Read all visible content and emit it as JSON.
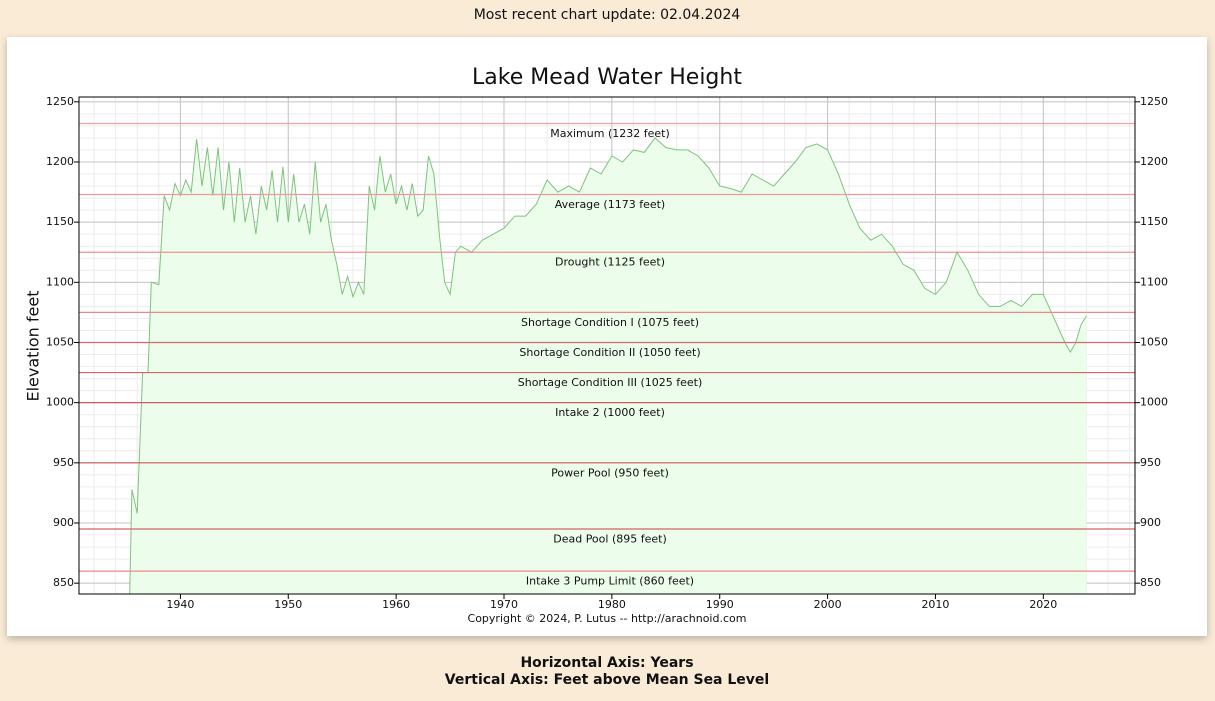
{
  "page": {
    "update_note": "Most recent chart update: 02.04.2024",
    "axis_notes": [
      "Horizontal Axis: Years",
      "Vertical Axis: Feet above Mean Sea Level"
    ]
  },
  "chart_data": {
    "type": "line",
    "title": "Lake Mead Water Height",
    "ylabel": "Elevation feet",
    "credit": "Copyright © 2024, P. Lutus -- http://arachnoid.com",
    "xlim": [
      1930.6,
      2028.5
    ],
    "xticks": [
      1940,
      1950,
      1960,
      1970,
      1980,
      1990,
      2000,
      2010,
      2020
    ],
    "ylim": [
      841,
      1254
    ],
    "yticks": [
      850,
      900,
      950,
      1000,
      1050,
      1100,
      1150,
      1200,
      1250
    ],
    "grid": true,
    "right_axis_labels": true,
    "reference_lines": [
      {
        "value": 1232,
        "label": "Maximum (1232 feet)",
        "color": "#f2a2a2"
      },
      {
        "value": 1173,
        "label": "Average (1173 feet)",
        "color": "#ee9a9a"
      },
      {
        "value": 1125,
        "label": "Drought (1125 feet)",
        "color": "#ea9292"
      },
      {
        "value": 1075,
        "label": "Shortage Condition I (1075 feet)",
        "color": "#e88a8a"
      },
      {
        "value": 1050,
        "label": "Shortage Condition II (1050 feet)",
        "color": "#d86a6a"
      },
      {
        "value": 1025,
        "label": "Shortage Condition III (1025 feet)",
        "color": "#d46464"
      },
      {
        "value": 1000,
        "label": "Intake 2 (1000 feet)",
        "color": "#cc5a5a"
      },
      {
        "value": 950,
        "label": "Power Pool (950 feet)",
        "color": "#cc5a5a"
      },
      {
        "value": 895,
        "label": "Dead Pool (895 feet)",
        "color": "#d46464"
      },
      {
        "value": 860,
        "label": "Intake 3 Pump Limit (860 feet)",
        "color": "#e88a8a"
      }
    ],
    "x": [
      1935.3,
      1935.5,
      1936,
      1936.5,
      1937,
      1937.3,
      1938,
      1938.5,
      1939,
      1939.5,
      1940,
      1940.5,
      1941,
      1941.5,
      1942,
      1942.5,
      1943,
      1943.5,
      1944,
      1944.5,
      1945,
      1945.5,
      1946,
      1946.5,
      1947,
      1947.5,
      1948,
      1948.5,
      1949,
      1949.5,
      1950,
      1950.5,
      1951,
      1951.5,
      1952,
      1952.5,
      1953,
      1953.5,
      1954,
      1954.5,
      1955,
      1955.5,
      1956,
      1956.5,
      1957,
      1957.5,
      1958,
      1958.5,
      1959,
      1959.5,
      1960,
      1960.5,
      1961,
      1961.5,
      1962,
      1962.5,
      1963,
      1963.5,
      1964,
      1964.5,
      1965,
      1965.5,
      1966,
      1967,
      1968,
      1969,
      1970,
      1971,
      1972,
      1973,
      1974,
      1975,
      1976,
      1977,
      1978,
      1979,
      1980,
      1981,
      1982,
      1983,
      1984,
      1985,
      1986,
      1987,
      1988,
      1989,
      1990,
      1991,
      1992,
      1993,
      1994,
      1995,
      1996,
      1997,
      1998,
      1999,
      2000,
      2001,
      2002,
      2003,
      2004,
      2005,
      2006,
      2007,
      2008,
      2009,
      2010,
      2011,
      2012,
      2013,
      2014,
      2015,
      2016,
      2017,
      2018,
      2019,
      2020,
      2021,
      2022,
      2022.5,
      2023,
      2023.5,
      2024
    ],
    "series": [
      {
        "name": "Water height",
        "color": "#7cc47c",
        "fill": "#ecfdec",
        "values": [
          841,
          928,
          908,
          1025,
          1025,
          1100,
          1098,
          1172,
          1160,
          1182,
          1172,
          1185,
          1175,
          1219,
          1180,
          1212,
          1172,
          1212,
          1160,
          1200,
          1150,
          1195,
          1150,
          1172,
          1140,
          1180,
          1160,
          1193,
          1150,
          1196,
          1150,
          1190,
          1150,
          1165,
          1140,
          1200,
          1150,
          1165,
          1135,
          1115,
          1090,
          1105,
          1088,
          1100,
          1090,
          1180,
          1160,
          1205,
          1175,
          1190,
          1165,
          1180,
          1160,
          1182,
          1155,
          1160,
          1205,
          1190,
          1140,
          1100,
          1090,
          1125,
          1130,
          1125,
          1135,
          1140,
          1145,
          1155,
          1155,
          1165,
          1185,
          1175,
          1180,
          1175,
          1195,
          1190,
          1205,
          1200,
          1210,
          1208,
          1220,
          1212,
          1210,
          1210,
          1205,
          1195,
          1180,
          1178,
          1175,
          1190,
          1185,
          1180,
          1190,
          1200,
          1212,
          1215,
          1210,
          1190,
          1165,
          1145,
          1135,
          1140,
          1130,
          1115,
          1110,
          1095,
          1090,
          1100,
          1125,
          1110,
          1090,
          1080,
          1080,
          1085,
          1080,
          1090,
          1090,
          1070,
          1050,
          1042,
          1050,
          1065,
          1072
        ]
      }
    ]
  }
}
